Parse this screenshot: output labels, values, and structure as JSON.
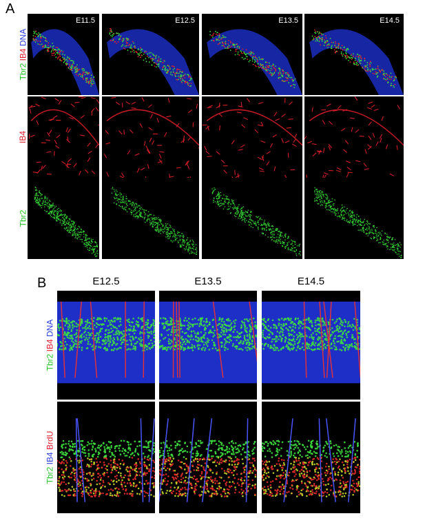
{
  "panels": {
    "a": {
      "letter": "A",
      "stages": [
        "E11.5",
        "E12.5",
        "E13.5",
        "E14.5"
      ],
      "rows": [
        {
          "label_parts": [
            {
              "text": "Tbr2",
              "color": "#29c429"
            },
            {
              "text": "IB4",
              "color": "#e21b2c"
            },
            {
              "text": "DNA",
              "color": "#2b3fe0"
            }
          ],
          "kind": "merge"
        },
        {
          "label_parts": [
            {
              "text": "IB4",
              "color": "#e21b2c"
            }
          ],
          "kind": "ib4"
        },
        {
          "label_parts": [
            {
              "text": "Tbr2",
              "color": "#29c429"
            }
          ],
          "kind": "tbr2"
        }
      ]
    },
    "b": {
      "letter": "B",
      "stages": [
        "E12.5",
        "E13.5",
        "E14.5"
      ],
      "rows": [
        {
          "label_parts": [
            {
              "text": "Tbr2",
              "color": "#29c429"
            },
            {
              "text": "IB4",
              "color": "#e21b2c"
            },
            {
              "text": "DNA",
              "color": "#2b3fe0"
            }
          ],
          "kind": "dna"
        },
        {
          "label_parts": [
            {
              "text": "Tbr2",
              "color": "#29c429"
            },
            {
              "text": "IB4",
              "color": "#2b3fe0"
            },
            {
              "text": "BrdU",
              "color": "#e21b2c"
            }
          ],
          "kind": "brdu"
        }
      ]
    }
  }
}
